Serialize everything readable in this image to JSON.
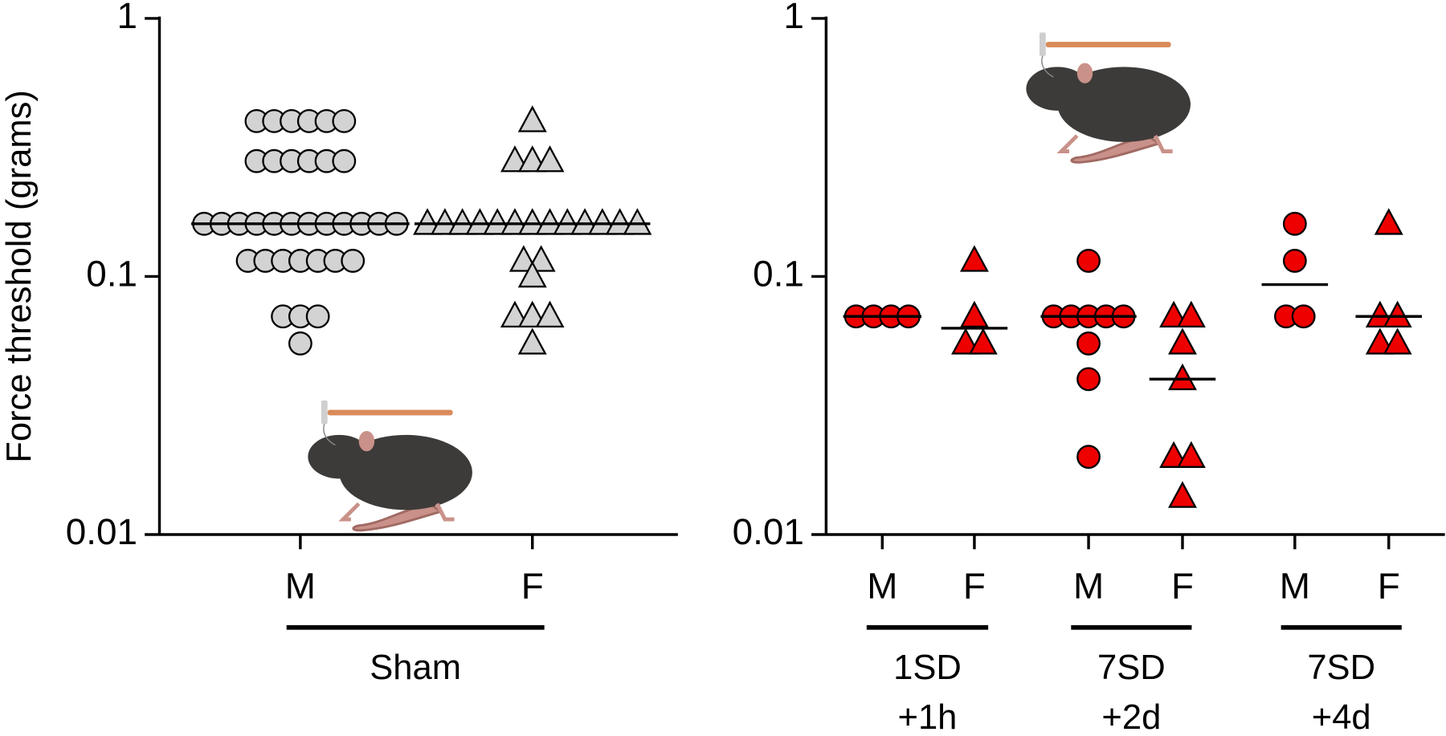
{
  "chart_data": [
    {
      "type": "scatter",
      "ylabel": "Force threshold (grams)",
      "log_y": true,
      "ylim": [
        0.01,
        1
      ],
      "yticks": [
        0.01,
        0.1,
        1
      ],
      "color": "#d3d3d3",
      "groups": [
        {
          "name": [
            "Sham"
          ],
          "subgroups": [
            {
              "category": "M",
              "marker": "circle",
              "median": 0.16,
              "values": [
                0.4,
                0.4,
                0.4,
                0.4,
                0.4,
                0.4,
                0.28,
                0.28,
                0.28,
                0.28,
                0.28,
                0.28,
                0.16,
                0.16,
                0.16,
                0.16,
                0.16,
                0.16,
                0.16,
                0.16,
                0.16,
                0.16,
                0.16,
                0.16,
                0.115,
                0.115,
                0.115,
                0.115,
                0.115,
                0.115,
                0.115,
                0.07,
                0.07,
                0.07,
                0.055
              ]
            },
            {
              "category": "F",
              "marker": "triangle",
              "median": 0.16,
              "values": [
                0.4,
                0.28,
                0.28,
                0.28,
                0.16,
                0.16,
                0.16,
                0.16,
                0.16,
                0.16,
                0.16,
                0.16,
                0.16,
                0.16,
                0.16,
                0.16,
                0.16,
                0.115,
                0.115,
                0.1,
                0.07,
                0.07,
                0.07,
                0.055
              ]
            }
          ]
        }
      ]
    },
    {
      "type": "scatter",
      "log_y": true,
      "ylim": [
        0.01,
        1
      ],
      "yticks": [
        0.01,
        0.1,
        1
      ],
      "color": "#ee0000",
      "groups": [
        {
          "name": [
            "1SD",
            "+1h"
          ],
          "subgroups": [
            {
              "category": "M",
              "marker": "circle",
              "median": 0.07,
              "values": [
                0.07,
                0.07,
                0.07,
                0.07
              ]
            },
            {
              "category": "F",
              "marker": "triangle",
              "median": 0.063,
              "values": [
                0.115,
                0.07,
                0.055,
                0.055
              ]
            }
          ]
        },
        {
          "name": [
            "7SD",
            "+2d"
          ],
          "subgroups": [
            {
              "category": "M",
              "marker": "circle",
              "median": 0.07,
              "values": [
                0.115,
                0.07,
                0.07,
                0.07,
                0.07,
                0.07,
                0.055,
                0.04,
                0.02
              ]
            },
            {
              "category": "F",
              "marker": "triangle",
              "median": 0.04,
              "values": [
                0.07,
                0.07,
                0.055,
                0.04,
                0.02,
                0.02,
                0.014
              ]
            }
          ]
        },
        {
          "name": [
            "7SD",
            "+4d"
          ],
          "subgroups": [
            {
              "category": "M",
              "marker": "circle",
              "median": 0.093,
              "values": [
                0.16,
                0.115,
                0.07,
                0.07
              ]
            },
            {
              "category": "F",
              "marker": "triangle",
              "median": 0.07,
              "values": [
                0.16,
                0.07,
                0.07,
                0.055,
                0.055
              ]
            }
          ]
        }
      ]
    }
  ]
}
